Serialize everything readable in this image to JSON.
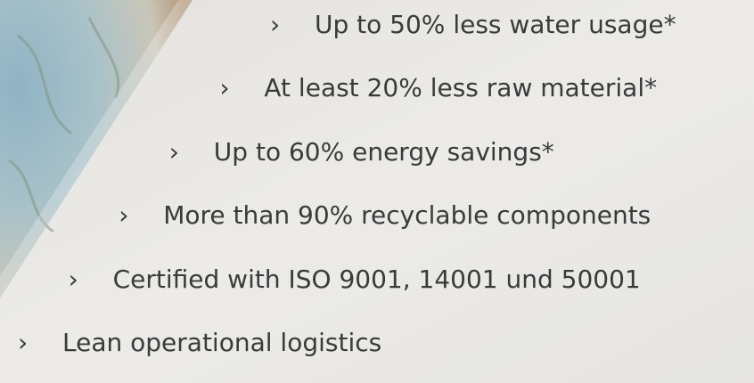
{
  "bullet": "›",
  "items": [
    "Up to 50% less water usage*",
    "At least 20% less raw material*",
    "Up to 60% energy savings*",
    "More than 90% recyclable components",
    "Certified with ISO 9001, 14001 und 50001",
    "Lean operational logistics"
  ]
}
